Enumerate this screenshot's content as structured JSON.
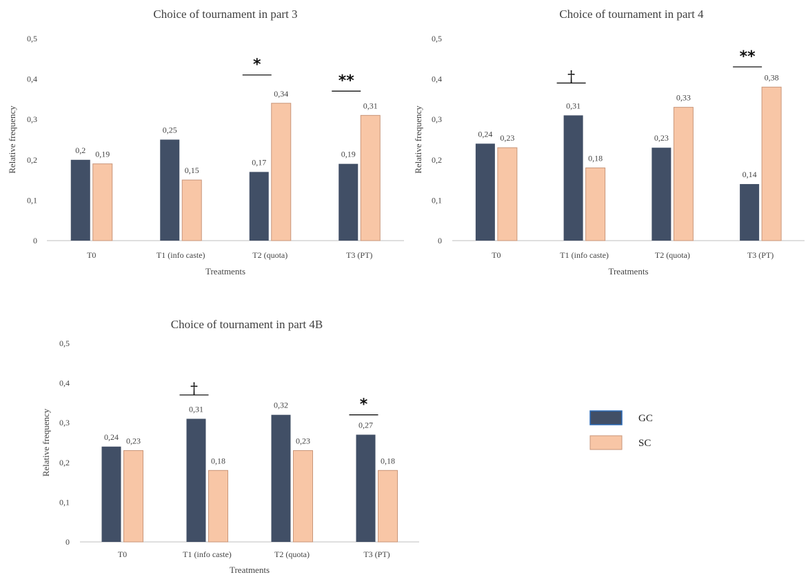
{
  "colors": {
    "GC": "#414f66",
    "SC": "#f8c6a6",
    "SC_stroke": "#c9967a"
  },
  "legend": [
    {
      "key": "GC",
      "label": "GC"
    },
    {
      "key": "SC",
      "label": "SC"
    }
  ],
  "chart_data": [
    {
      "type": "bar",
      "title": "Choice of tournament in part 3",
      "xlabel": "Treatments",
      "ylabel": "Relative frequency",
      "ylim": [
        0,
        0.5
      ],
      "yticks": [
        "0",
        "0,1",
        "0,2",
        "0,3",
        "0,4",
        "0,5"
      ],
      "categories": [
        "T0",
        "T1 (info caste)",
        "T2 (quota)",
        "T3 (PT)"
      ],
      "series": [
        {
          "name": "GC",
          "values": [
            0.2,
            0.25,
            0.17,
            0.19
          ],
          "labels": [
            "0,2",
            "0,25",
            "0,17",
            "0,19"
          ]
        },
        {
          "name": "SC",
          "values": [
            0.19,
            0.15,
            0.34,
            0.31
          ],
          "labels": [
            "0,19",
            "0,15",
            "0,34",
            "0,31"
          ]
        }
      ],
      "significance": [
        {
          "category": 2,
          "symbol": "*",
          "level": 0.41
        },
        {
          "category": 3,
          "symbol": "**",
          "level": 0.37
        }
      ]
    },
    {
      "type": "bar",
      "title": "Choice of tournament in part 4",
      "xlabel": "Treatments",
      "ylabel": "Relative frequency",
      "ylim": [
        0,
        0.5
      ],
      "yticks": [
        "0",
        "0,1",
        "0,2",
        "0,3",
        "0,4",
        "0,5"
      ],
      "categories": [
        "T0",
        "T1 (info caste)",
        "T2 (quota)",
        "T3 (PT)"
      ],
      "series": [
        {
          "name": "GC",
          "values": [
            0.24,
            0.31,
            0.23,
            0.14
          ],
          "labels": [
            "0,24",
            "0,31",
            "0,23",
            "0,14"
          ]
        },
        {
          "name": "SC",
          "values": [
            0.23,
            0.18,
            0.33,
            0.38
          ],
          "labels": [
            "0,23",
            "0,18",
            "0,33",
            "0,38"
          ]
        }
      ],
      "significance": [
        {
          "category": 1,
          "symbol": "†",
          "level": 0.39
        },
        {
          "category": 3,
          "symbol": "**",
          "level": 0.43
        }
      ]
    },
    {
      "type": "bar",
      "title": "Choice of tournament in part 4B",
      "xlabel": "Treatments",
      "ylabel": "Relative frequency",
      "ylim": [
        0,
        0.5
      ],
      "yticks": [
        "0",
        "0,1",
        "0,2",
        "0,3",
        "0,4",
        "0,5"
      ],
      "categories": [
        "T0",
        "T1 (info caste)",
        "T2 (quota)",
        "T3 (PT)"
      ],
      "series": [
        {
          "name": "GC",
          "values": [
            0.24,
            0.31,
            0.32,
            0.27
          ],
          "labels": [
            "0,24",
            "0,31",
            "0,32",
            "0,27"
          ]
        },
        {
          "name": "SC",
          "values": [
            0.23,
            0.18,
            0.23,
            0.18
          ],
          "labels": [
            "0,23",
            "0,18",
            "0,23",
            "0,18"
          ]
        }
      ],
      "significance": [
        {
          "category": 1,
          "symbol": "†",
          "level": 0.37
        },
        {
          "category": 3,
          "symbol": "*",
          "level": 0.32
        }
      ]
    }
  ]
}
